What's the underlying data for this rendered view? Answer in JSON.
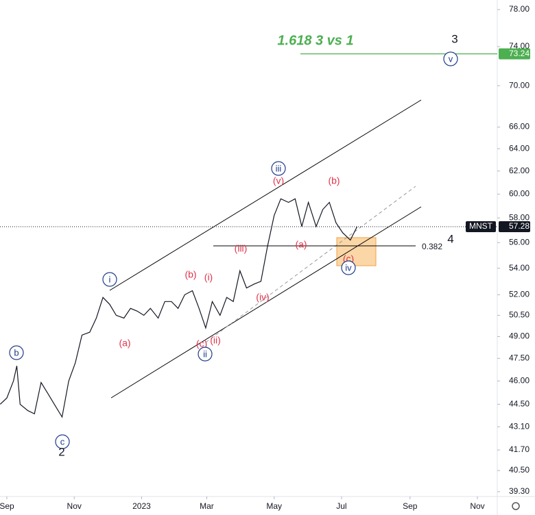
{
  "chart_data": {
    "type": "line",
    "log_scale": true,
    "x": [
      -6,
      0,
      6,
      9,
      12,
      19,
      25,
      31,
      37,
      43,
      50,
      56,
      62,
      68,
      75,
      81,
      87,
      93,
      99,
      106,
      112,
      118,
      124,
      130,
      137,
      143,
      149,
      155,
      161,
      168,
      174,
      180,
      186,
      193,
      199,
      205,
      211,
      217,
      224,
      230,
      236,
      242,
      248,
      255,
      261,
      267,
      273,
      280,
      286,
      292,
      298,
      304,
      311,
      317
    ],
    "series": [
      {
        "name": "MNST",
        "color": "#131722",
        "values": [
          44.5,
          44.9,
          46,
          47,
          44.5,
          44.1,
          43.9,
          45.9,
          45.2,
          44.5,
          43.7,
          46,
          47.2,
          49.1,
          49.3,
          50.3,
          51.8,
          51.3,
          50.5,
          50.3,
          51.0,
          50.8,
          50.5,
          51.0,
          50.3,
          51.5,
          51.5,
          51.0,
          52.0,
          52.3,
          51.0,
          49.6,
          51.5,
          50.5,
          51.8,
          51.5,
          53.8,
          52.5,
          52.8,
          53.0,
          55.7,
          58.2,
          59.6,
          59.3,
          59.6,
          57.3,
          59.3,
          57.3,
          58.7,
          59.3,
          57.6,
          56.8,
          56.2,
          57.28
        ]
      }
    ],
    "last_price": {
      "value": 57.28,
      "label": "57.28"
    },
    "target_level": {
      "value": 73.24,
      "label": "73.24",
      "color": "#4caf50"
    },
    "xlim": [
      -6.2,
      444
    ],
    "xticks": [
      {
        "value": 0,
        "label": "Sep"
      },
      {
        "value": 61,
        "label": "Nov"
      },
      {
        "value": 122,
        "label": "2023"
      },
      {
        "value": 181,
        "label": "Mar"
      },
      {
        "value": 242,
        "label": "May"
      },
      {
        "value": 303,
        "label": "Jul"
      },
      {
        "value": 365,
        "label": "Sep"
      },
      {
        "value": 426,
        "label": "Nov"
      }
    ],
    "ylim": [
      39.03,
      79.07
    ],
    "yticks": [
      {
        "value": 78,
        "label": "78.00"
      },
      {
        "value": 74,
        "label": "74.00"
      },
      {
        "value": 70,
        "label": "70.00"
      },
      {
        "value": 66,
        "label": "66.00"
      },
      {
        "value": 64,
        "label": "64.00"
      },
      {
        "value": 62,
        "label": "62.00"
      },
      {
        "value": 60,
        "label": "60.00"
      },
      {
        "value": 58,
        "label": "58.00"
      },
      {
        "value": 56,
        "label": "56.00"
      },
      {
        "value": 54,
        "label": "54.00"
      },
      {
        "value": 52,
        "label": "52.00"
      },
      {
        "value": 50.5,
        "label": "50.50"
      },
      {
        "value": 49,
        "label": "49.00"
      },
      {
        "value": 47.5,
        "label": "47.50"
      },
      {
        "value": 46,
        "label": "46.00"
      },
      {
        "value": 44.5,
        "label": "44.50"
      },
      {
        "value": 43.1,
        "label": "43.10"
      },
      {
        "value": 41.7,
        "label": "41.70"
      },
      {
        "value": 40.5,
        "label": "40.50"
      },
      {
        "value": 39.3,
        "label": "39.30"
      }
    ],
    "annotations": [
      "1.618 3 vs 1",
      "3",
      "v",
      "iii",
      "(v)",
      "(b)",
      "(iii)",
      "(a)",
      "(c)",
      "iv",
      "4",
      "0.382",
      "i",
      "(b)",
      "(i)",
      "(iv)",
      "(a)",
      "(ii)",
      "(c)",
      "ii",
      "b",
      "c",
      "2"
    ]
  }
}
